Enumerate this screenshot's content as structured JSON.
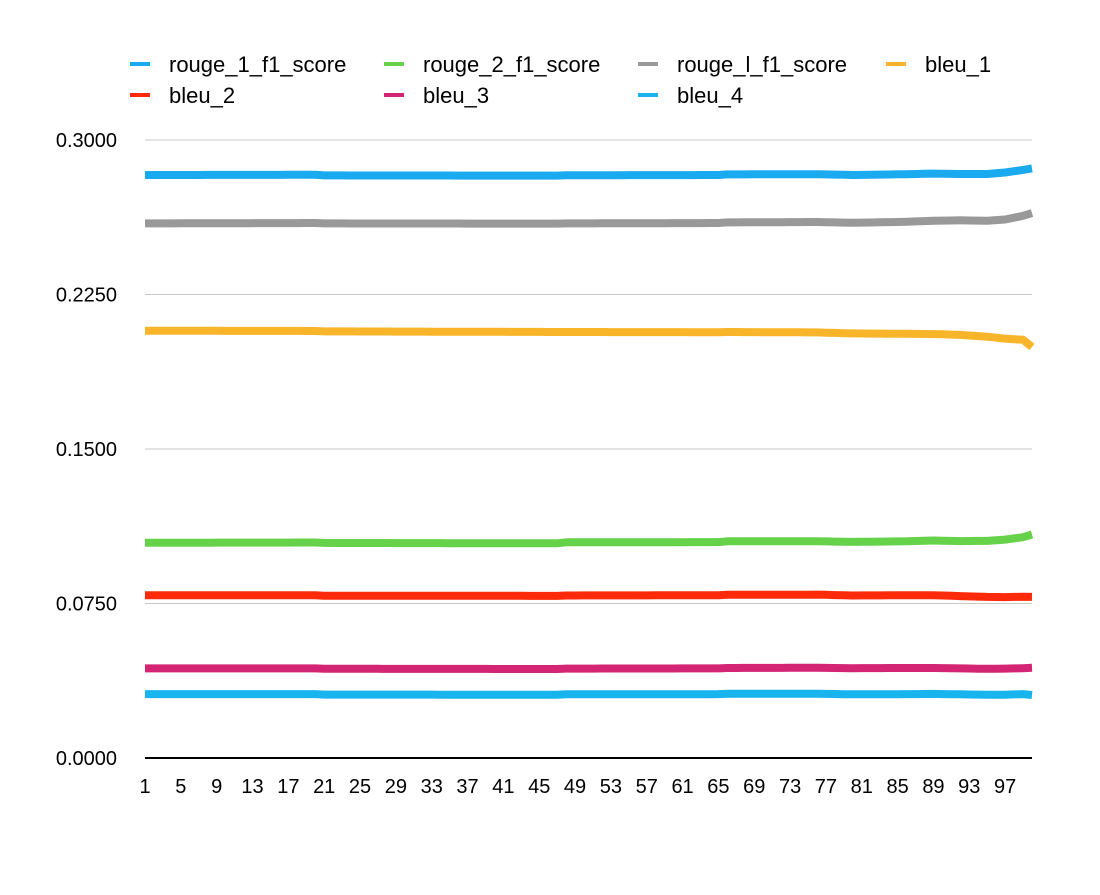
{
  "chart_data": {
    "type": "line",
    "title": "",
    "xlabel": "",
    "ylabel": "",
    "x": [
      1,
      2,
      3,
      4,
      5,
      6,
      7,
      8,
      9,
      10,
      11,
      12,
      13,
      14,
      15,
      16,
      17,
      18,
      19,
      20,
      21,
      22,
      23,
      24,
      25,
      26,
      27,
      28,
      29,
      30,
      31,
      32,
      33,
      34,
      35,
      36,
      37,
      38,
      39,
      40,
      41,
      42,
      43,
      44,
      45,
      46,
      47,
      48,
      49,
      50,
      51,
      52,
      53,
      54,
      55,
      56,
      57,
      58,
      59,
      60,
      61,
      62,
      63,
      64,
      65,
      66,
      67,
      68,
      69,
      70,
      71,
      72,
      73,
      74,
      75,
      76,
      77,
      78,
      79,
      80,
      81,
      82,
      83,
      84,
      85,
      86,
      87,
      88,
      89,
      90,
      91,
      92,
      93,
      94,
      95,
      96,
      97,
      98,
      99,
      100
    ],
    "x_tick_labels": [
      "1",
      "5",
      "9",
      "13",
      "17",
      "21",
      "25",
      "29",
      "33",
      "37",
      "41",
      "45",
      "49",
      "53",
      "57",
      "61",
      "65",
      "69",
      "73",
      "77",
      "81",
      "85",
      "89",
      "93",
      "97"
    ],
    "ylim": [
      0,
      0.3
    ],
    "y_tick_labels": [
      "0.0000",
      "0.0750",
      "0.1500",
      "0.2250",
      "0.3000"
    ],
    "grid": true,
    "legend_position": "top",
    "series": [
      {
        "name": "rouge_1_f1_score",
        "color": "#1AAAF0",
        "keypoints": [
          [
            1,
            0.283
          ],
          [
            20,
            0.2831
          ],
          [
            21,
            0.2828
          ],
          [
            47,
            0.2827
          ],
          [
            48,
            0.2829
          ],
          [
            65,
            0.283
          ],
          [
            66,
            0.2833
          ],
          [
            76,
            0.2834
          ],
          [
            80,
            0.283
          ],
          [
            86,
            0.2834
          ],
          [
            89,
            0.2837
          ],
          [
            92,
            0.2835
          ],
          [
            95,
            0.2835
          ],
          [
            97,
            0.2842
          ],
          [
            99,
            0.2855
          ],
          [
            100,
            0.2862
          ]
        ]
      },
      {
        "name": "rouge_2_f1_score",
        "color": "#66D24A",
        "keypoints": [
          [
            1,
            0.1045
          ],
          [
            20,
            0.1046
          ],
          [
            21,
            0.1044
          ],
          [
            47,
            0.1042
          ],
          [
            48,
            0.1047
          ],
          [
            65,
            0.1048
          ],
          [
            66,
            0.1052
          ],
          [
            76,
            0.1052
          ],
          [
            80,
            0.1049
          ],
          [
            86,
            0.1052
          ],
          [
            89,
            0.1056
          ],
          [
            92,
            0.1053
          ],
          [
            95,
            0.1054
          ],
          [
            97,
            0.106
          ],
          [
            99,
            0.1072
          ],
          [
            100,
            0.1085
          ]
        ]
      },
      {
        "name": "rouge_l_f1_score",
        "color": "#999999",
        "keypoints": [
          [
            1,
            0.2595
          ],
          [
            20,
            0.2597
          ],
          [
            21,
            0.2595
          ],
          [
            47,
            0.2594
          ],
          [
            48,
            0.2595
          ],
          [
            65,
            0.2597
          ],
          [
            66,
            0.26
          ],
          [
            76,
            0.2602
          ],
          [
            80,
            0.2598
          ],
          [
            86,
            0.2603
          ],
          [
            89,
            0.2608
          ],
          [
            92,
            0.261
          ],
          [
            95,
            0.2608
          ],
          [
            97,
            0.2614
          ],
          [
            99,
            0.2632
          ],
          [
            100,
            0.2645
          ]
        ]
      },
      {
        "name": "bleu_1",
        "color": "#F9B52A",
        "keypoints": [
          [
            1,
            0.2074
          ],
          [
            20,
            0.2073
          ],
          [
            21,
            0.2071
          ],
          [
            47,
            0.2068
          ],
          [
            48,
            0.2068
          ],
          [
            65,
            0.2067
          ],
          [
            66,
            0.2068
          ],
          [
            76,
            0.2066
          ],
          [
            80,
            0.2061
          ],
          [
            86,
            0.2059
          ],
          [
            89,
            0.2058
          ],
          [
            92,
            0.2054
          ],
          [
            95,
            0.2045
          ],
          [
            97,
            0.2036
          ],
          [
            99,
            0.203
          ],
          [
            100,
            0.1995
          ]
        ]
      },
      {
        "name": "bleu_2",
        "color": "#FF2A0A",
        "keypoints": [
          [
            1,
            0.079
          ],
          [
            20,
            0.079
          ],
          [
            21,
            0.0788
          ],
          [
            47,
            0.0787
          ],
          [
            48,
            0.0789
          ],
          [
            65,
            0.079
          ],
          [
            66,
            0.0792
          ],
          [
            76,
            0.0793
          ],
          [
            80,
            0.0789
          ],
          [
            86,
            0.079
          ],
          [
            89,
            0.079
          ],
          [
            92,
            0.0786
          ],
          [
            95,
            0.0782
          ],
          [
            97,
            0.0781
          ],
          [
            99,
            0.0783
          ],
          [
            100,
            0.0782
          ]
        ]
      },
      {
        "name": "bleu_3",
        "color": "#D42474",
        "keypoints": [
          [
            1,
            0.0435
          ],
          [
            20,
            0.0435
          ],
          [
            21,
            0.0433
          ],
          [
            47,
            0.0432
          ],
          [
            48,
            0.0434
          ],
          [
            65,
            0.0435
          ],
          [
            66,
            0.0437
          ],
          [
            76,
            0.0438
          ],
          [
            80,
            0.0436
          ],
          [
            86,
            0.0437
          ],
          [
            89,
            0.0437
          ],
          [
            92,
            0.0435
          ],
          [
            95,
            0.0433
          ],
          [
            97,
            0.0434
          ],
          [
            99,
            0.0436
          ],
          [
            100,
            0.0438
          ]
        ]
      },
      {
        "name": "bleu_4",
        "color": "#17B4EE",
        "keypoints": [
          [
            1,
            0.031
          ],
          [
            20,
            0.031
          ],
          [
            21,
            0.0308
          ],
          [
            47,
            0.0307
          ],
          [
            48,
            0.0309
          ],
          [
            65,
            0.031
          ],
          [
            66,
            0.0312
          ],
          [
            76,
            0.0312
          ],
          [
            80,
            0.0309
          ],
          [
            86,
            0.031
          ],
          [
            89,
            0.0311
          ],
          [
            92,
            0.0309
          ],
          [
            95,
            0.0307
          ],
          [
            97,
            0.0307
          ],
          [
            99,
            0.031
          ],
          [
            100,
            0.0306
          ]
        ]
      }
    ]
  }
}
